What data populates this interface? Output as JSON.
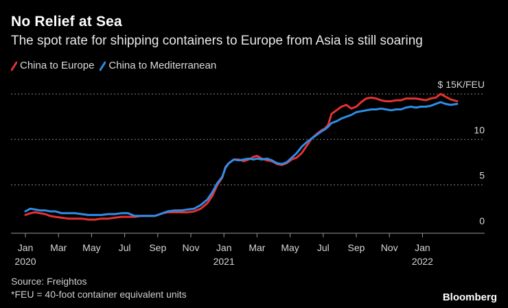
{
  "header": {
    "title": "No Relief at Sea",
    "subtitle": "The spot rate for shipping containers to Europe from Asia is still soaring"
  },
  "legend": {
    "items": [
      {
        "label": "China to Europe",
        "color": "#e63232"
      },
      {
        "label": "China to Mediterranean",
        "color": "#2f8ee8"
      }
    ]
  },
  "footer": {
    "source": "Source: Freightos",
    "note": "*FEU = 40-foot container equivalent units",
    "brand": "Bloomberg"
  },
  "chart_data": {
    "type": "line",
    "title": "No Relief at Sea",
    "xlabel": "",
    "ylabel": "$ 15K/FEU",
    "ylim": [
      0,
      15
    ],
    "y_ticks": [
      {
        "value": 0,
        "label": "0"
      },
      {
        "value": 5,
        "label": "5"
      },
      {
        "value": 10,
        "label": "10"
      },
      {
        "value": 15,
        "label": "$ 15K/FEU"
      }
    ],
    "x_ticks": [
      {
        "t": 0,
        "label": "Jan",
        "year": "2020"
      },
      {
        "t": 2,
        "label": "Mar",
        "year": ""
      },
      {
        "t": 4,
        "label": "May",
        "year": ""
      },
      {
        "t": 6,
        "label": "Jul",
        "year": ""
      },
      {
        "t": 8,
        "label": "Sep",
        "year": ""
      },
      {
        "t": 10,
        "label": "Nov",
        "year": ""
      },
      {
        "t": 12,
        "label": "Jan",
        "year": "2021"
      },
      {
        "t": 14,
        "label": "Mar",
        "year": ""
      },
      {
        "t": 16,
        "label": "May",
        "year": ""
      },
      {
        "t": 18,
        "label": "Jul",
        "year": ""
      },
      {
        "t": 20,
        "label": "Sep",
        "year": ""
      },
      {
        "t": 22,
        "label": "Nov",
        "year": ""
      },
      {
        "t": 24,
        "label": "Jan",
        "year": "2022"
      }
    ],
    "x_unit": "months since Jan 2020",
    "series": [
      {
        "name": "China to Europe",
        "color": "#e63232",
        "points": [
          [
            0,
            1.7
          ],
          [
            0.3,
            1.9
          ],
          [
            0.6,
            2.0
          ],
          [
            0.9,
            1.9
          ],
          [
            1.2,
            1.8
          ],
          [
            1.5,
            1.6
          ],
          [
            1.8,
            1.5
          ],
          [
            2.2,
            1.4
          ],
          [
            2.6,
            1.3
          ],
          [
            3.0,
            1.3
          ],
          [
            3.4,
            1.3
          ],
          [
            3.8,
            1.2
          ],
          [
            4.2,
            1.2
          ],
          [
            4.6,
            1.3
          ],
          [
            5.0,
            1.3
          ],
          [
            5.4,
            1.4
          ],
          [
            5.8,
            1.5
          ],
          [
            6.2,
            1.5
          ],
          [
            6.6,
            1.5
          ],
          [
            7.0,
            1.6
          ],
          [
            7.4,
            1.6
          ],
          [
            7.8,
            1.6
          ],
          [
            8.0,
            1.7
          ],
          [
            8.3,
            1.9
          ],
          [
            8.6,
            2.0
          ],
          [
            9.0,
            2.0
          ],
          [
            9.4,
            2.0
          ],
          [
            9.8,
            2.0
          ],
          [
            10.2,
            2.1
          ],
          [
            10.6,
            2.4
          ],
          [
            11.0,
            3.0
          ],
          [
            11.3,
            3.8
          ],
          [
            11.6,
            5.0
          ],
          [
            11.9,
            5.8
          ],
          [
            12.1,
            7.0
          ],
          [
            12.3,
            7.4
          ],
          [
            12.6,
            7.8
          ],
          [
            12.9,
            7.8
          ],
          [
            13.2,
            7.6
          ],
          [
            13.5,
            7.8
          ],
          [
            13.8,
            8.1
          ],
          [
            14.0,
            8.2
          ],
          [
            14.3,
            7.9
          ],
          [
            14.6,
            7.7
          ],
          [
            14.9,
            7.6
          ],
          [
            15.2,
            7.3
          ],
          [
            15.5,
            7.2
          ],
          [
            15.8,
            7.4
          ],
          [
            16.1,
            7.8
          ],
          [
            16.4,
            8.0
          ],
          [
            16.7,
            8.5
          ],
          [
            17.0,
            9.3
          ],
          [
            17.3,
            10.1
          ],
          [
            17.6,
            10.6
          ],
          [
            17.9,
            11.0
          ],
          [
            18.1,
            11.2
          ],
          [
            18.3,
            11.6
          ],
          [
            18.5,
            12.8
          ],
          [
            18.8,
            13.2
          ],
          [
            19.1,
            13.6
          ],
          [
            19.4,
            13.8
          ],
          [
            19.7,
            13.4
          ],
          [
            20.0,
            13.6
          ],
          [
            20.3,
            14.1
          ],
          [
            20.6,
            14.5
          ],
          [
            20.9,
            14.6
          ],
          [
            21.2,
            14.5
          ],
          [
            21.5,
            14.3
          ],
          [
            21.8,
            14.2
          ],
          [
            22.1,
            14.2
          ],
          [
            22.4,
            14.3
          ],
          [
            22.7,
            14.3
          ],
          [
            23.0,
            14.5
          ],
          [
            23.3,
            14.5
          ],
          [
            23.6,
            14.5
          ],
          [
            23.9,
            14.4
          ],
          [
            24.2,
            14.3
          ],
          [
            24.5,
            14.5
          ],
          [
            24.8,
            14.6
          ],
          [
            25.1,
            15.0
          ],
          [
            25.4,
            14.7
          ],
          [
            25.7,
            14.4
          ],
          [
            26.1,
            14.2
          ]
        ]
      },
      {
        "name": "China to Mediterranean",
        "color": "#2f8ee8",
        "points": [
          [
            0,
            2.1
          ],
          [
            0.3,
            2.4
          ],
          [
            0.6,
            2.3
          ],
          [
            0.9,
            2.2
          ],
          [
            1.2,
            2.2
          ],
          [
            1.5,
            2.1
          ],
          [
            1.8,
            2.1
          ],
          [
            2.2,
            1.9
          ],
          [
            2.6,
            1.9
          ],
          [
            3.0,
            1.9
          ],
          [
            3.4,
            1.8
          ],
          [
            3.8,
            1.7
          ],
          [
            4.2,
            1.7
          ],
          [
            4.6,
            1.7
          ],
          [
            5.0,
            1.8
          ],
          [
            5.4,
            1.8
          ],
          [
            5.8,
            1.9
          ],
          [
            6.2,
            1.9
          ],
          [
            6.6,
            1.6
          ],
          [
            7.0,
            1.6
          ],
          [
            7.4,
            1.6
          ],
          [
            7.8,
            1.6
          ],
          [
            8.0,
            1.7
          ],
          [
            8.3,
            1.9
          ],
          [
            8.6,
            2.1
          ],
          [
            9.0,
            2.2
          ],
          [
            9.4,
            2.2
          ],
          [
            9.8,
            2.3
          ],
          [
            10.2,
            2.4
          ],
          [
            10.6,
            2.8
          ],
          [
            11.0,
            3.4
          ],
          [
            11.3,
            4.2
          ],
          [
            11.6,
            5.2
          ],
          [
            11.9,
            5.9
          ],
          [
            12.1,
            6.9
          ],
          [
            12.3,
            7.4
          ],
          [
            12.6,
            7.8
          ],
          [
            12.9,
            7.7
          ],
          [
            13.2,
            7.8
          ],
          [
            13.5,
            7.9
          ],
          [
            13.8,
            7.8
          ],
          [
            14.0,
            7.9
          ],
          [
            14.3,
            7.8
          ],
          [
            14.6,
            7.9
          ],
          [
            14.9,
            7.7
          ],
          [
            15.2,
            7.4
          ],
          [
            15.5,
            7.3
          ],
          [
            15.8,
            7.5
          ],
          [
            16.1,
            8.0
          ],
          [
            16.4,
            8.5
          ],
          [
            16.7,
            9.2
          ],
          [
            17.0,
            9.7
          ],
          [
            17.3,
            10.1
          ],
          [
            17.6,
            10.5
          ],
          [
            17.9,
            10.9
          ],
          [
            18.1,
            11.1
          ],
          [
            18.3,
            11.4
          ],
          [
            18.5,
            11.8
          ],
          [
            18.8,
            12.0
          ],
          [
            19.1,
            12.3
          ],
          [
            19.4,
            12.5
          ],
          [
            19.7,
            12.7
          ],
          [
            20.0,
            13.0
          ],
          [
            20.3,
            13.1
          ],
          [
            20.6,
            13.2
          ],
          [
            20.9,
            13.3
          ],
          [
            21.2,
            13.3
          ],
          [
            21.5,
            13.4
          ],
          [
            21.8,
            13.3
          ],
          [
            22.1,
            13.2
          ],
          [
            22.4,
            13.3
          ],
          [
            22.7,
            13.3
          ],
          [
            23.0,
            13.5
          ],
          [
            23.3,
            13.6
          ],
          [
            23.6,
            13.5
          ],
          [
            23.9,
            13.6
          ],
          [
            24.2,
            13.6
          ],
          [
            24.5,
            13.7
          ],
          [
            24.8,
            13.9
          ],
          [
            25.1,
            14.1
          ],
          [
            25.4,
            13.9
          ],
          [
            25.7,
            13.8
          ],
          [
            26.1,
            13.9
          ]
        ]
      }
    ]
  }
}
